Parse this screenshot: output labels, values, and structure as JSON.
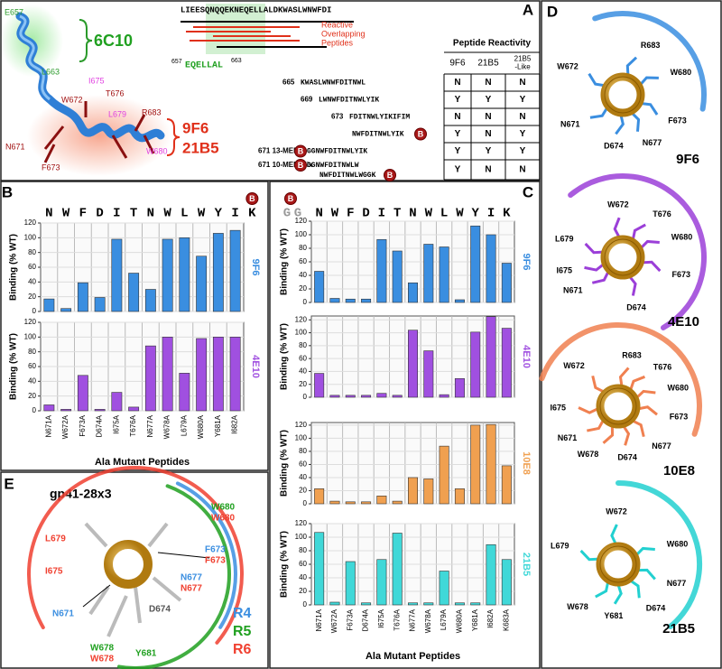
{
  "panel_letters": [
    "A",
    "B",
    "C",
    "D",
    "E"
  ],
  "biotin": "B",
  "panel_a": {
    "sequence": "LIEESQNQQEKNEQELLALDKWASLWNWFDI",
    "peptides_label": [
      "Reactive",
      "Overlapping",
      "Peptides"
    ],
    "epitope": {
      "start": "657",
      "seq": "EQELLAL",
      "end": "663"
    },
    "antibody_6c10": "6C10",
    "antibody_9f6": "9F6",
    "antibody_21b5": "21B5",
    "residues": [
      {
        "label": "E657",
        "color": "#2a9a2a"
      },
      {
        "label": "L663",
        "color": "#2a9a2a"
      },
      {
        "label": "W672",
        "color": "#a01010"
      },
      {
        "label": "T676",
        "color": "#a01010"
      },
      {
        "label": "I675",
        "color": "#e040e0"
      },
      {
        "label": "L679",
        "color": "#e040e0"
      },
      {
        "label": "R683",
        "color": "#a01010"
      },
      {
        "label": "N671",
        "color": "#a01010"
      },
      {
        "label": "F673",
        "color": "#a01010"
      },
      {
        "label": "W680",
        "color": "#e040e0"
      }
    ],
    "table": {
      "title": "Peptide Reactivity",
      "columns": [
        [
          "9F6"
        ],
        [
          "21B5"
        ],
        [
          "21B5",
          "-Like"
        ]
      ],
      "rows": [
        {
          "label": "665",
          "seq": [
            "KWASLWNWFDITNWL"
          ],
          "cells": [
            "N",
            "N",
            "N"
          ]
        },
        {
          "label": "669",
          "seq": [
            "LWNWFDITNWLYIK"
          ],
          "cells": [
            "Y",
            "Y",
            "Y"
          ]
        },
        {
          "label": "673",
          "seq": [
            "FDITNWLYIKIFIM"
          ],
          "cells": [
            "N",
            "N",
            "N"
          ]
        },
        {
          "seq": [
            "NWFDITNWLYIK"
          ],
          "cells": [
            "Y",
            "N",
            "Y"
          ]
        },
        {
          "label": "671 13-MER",
          "seq": [
            "GGNWFDITNWLYIK"
          ],
          "cells": [
            "Y",
            "Y",
            "Y"
          ]
        },
        {
          "label": "671 10-MER Mix",
          "seq": [
            "GGNWFDITNWLW",
            "NWFDITNWLWGGK"
          ],
          "cells": [
            "Y",
            "N",
            "N"
          ]
        }
      ]
    }
  },
  "panel_b_sequence": [
    "N",
    "W",
    "F",
    "D",
    "I",
    "T",
    "N",
    "W",
    "L",
    "W",
    "Y",
    "I",
    "K"
  ],
  "panel_c_sequence": [
    "G",
    "G",
    "N",
    "W",
    "F",
    "D",
    "I",
    "T",
    "N",
    "W",
    "L",
    "W",
    "Y",
    "I",
    "K"
  ],
  "chart_data": [
    {
      "type": "bar",
      "title": "9F6",
      "color": "#3a8ee0",
      "ylabel": "Binding (% WT)",
      "values": [
        17,
        4,
        39,
        19,
        98,
        52,
        30,
        98,
        100,
        75,
        106,
        110
      ],
      "ylim": [
        0,
        120
      ],
      "yticks": [
        0,
        20,
        40,
        60,
        80,
        100,
        120
      ],
      "grid": true
    },
    {
      "type": "bar",
      "title": "4E10",
      "color": "#a050e0",
      "ylabel": "Binding (% WT)",
      "xlabel": "Ala Mutant Peptides",
      "categories": [
        "N671A",
        "W672A",
        "F673A",
        "D674A",
        "I675A",
        "T676A",
        "N677A",
        "W678A",
        "L679A",
        "W680A",
        "Y681A",
        "I682A"
      ],
      "values": [
        8,
        2,
        48,
        2,
        25,
        5,
        88,
        100,
        51,
        98,
        100,
        100
      ],
      "ylim": [
        0,
        120
      ],
      "yticks": [
        0,
        20,
        40,
        60,
        80,
        100,
        120
      ],
      "grid": true
    },
    {
      "type": "bar",
      "title": "9F6",
      "color": "#3a8ee0",
      "ylabel": "Binding (% WT)",
      "values": [
        46,
        6,
        5,
        5,
        93,
        76,
        29,
        86,
        82,
        4,
        113,
        100,
        58
      ],
      "ylim": [
        0,
        120
      ],
      "yticks": [
        0,
        20,
        40,
        60,
        80,
        100,
        120
      ],
      "grid": true
    },
    {
      "type": "bar",
      "title": "4E10",
      "color": "#a050e0",
      "ylabel": "Binding (% WT)",
      "values": [
        37,
        3,
        3,
        3,
        6,
        3,
        104,
        72,
        4,
        29,
        101,
        125,
        107
      ],
      "ylim": [
        0,
        126
      ],
      "yticks": [
        0,
        20,
        40,
        60,
        80,
        100,
        120
      ],
      "grid": true
    },
    {
      "type": "bar",
      "title": "10E8",
      "color": "#f0a050",
      "ylabel": "Binding (% WT)",
      "values": [
        23,
        4,
        3,
        3,
        12,
        4,
        40,
        38,
        88,
        23,
        120,
        121,
        58
      ],
      "ylim": [
        0,
        124
      ],
      "yticks": [
        0,
        20,
        40,
        60,
        80,
        100,
        120
      ],
      "grid": true
    },
    {
      "type": "bar",
      "title": "21B5",
      "color": "#40d8d8",
      "ylabel": "Binding (% WT)",
      "xlabel": "Ala Mutant Peptides",
      "categories": [
        "N671A",
        "W672A",
        "F673A",
        "D674A",
        "I675A",
        "T676A",
        "N677A",
        "W678A",
        "L679A",
        "W680A",
        "Y681A",
        "I682A",
        "K683A"
      ],
      "values": [
        107,
        4,
        64,
        3,
        67,
        106,
        3,
        3,
        50,
        3,
        3,
        89,
        67
      ],
      "ylim": [
        0,
        120
      ],
      "yticks": [
        0,
        20,
        40,
        60,
        80,
        100,
        120
      ],
      "grid": true
    }
  ],
  "panel_d": [
    {
      "name": "9F6",
      "color": "#3a8ee0",
      "residues": [
        "R683",
        "W672",
        "W680",
        "F673",
        "N677",
        "N671",
        "D674"
      ]
    },
    {
      "name": "4E10",
      "color": "#9b3fd8",
      "residues": [
        "W672",
        "T676",
        "L679",
        "W680",
        "I675",
        "F673",
        "N671",
        "D674"
      ]
    },
    {
      "name": "10E8",
      "color": "#f08050",
      "residues": [
        "R683",
        "T676",
        "W672",
        "W680",
        "I675",
        "F673",
        "N677",
        "N671",
        "D674",
        "W678"
      ]
    },
    {
      "name": "21B5",
      "color": "#22d0d0",
      "residues": [
        "W672",
        "L679",
        "W680",
        "N677",
        "D674",
        "W678",
        "Y681"
      ]
    }
  ],
  "panel_e": {
    "title": "gp41-28x3",
    "legend": [
      {
        "label": "R4",
        "color": "#3a8ee0"
      },
      {
        "label": "R5",
        "color": "#20a020"
      },
      {
        "label": "R6",
        "color": "#f04030"
      }
    ],
    "residues": [
      {
        "label": "W680",
        "color": "#20a020"
      },
      {
        "label": "W680",
        "color": "#f04030"
      },
      {
        "label": "F673",
        "color": "#3a8ee0"
      },
      {
        "label": "F673",
        "color": "#f04030"
      },
      {
        "label": "L679",
        "color": "#f04030"
      },
      {
        "label": "I675",
        "color": "#f04030"
      },
      {
        "label": "N677",
        "color": "#3a8ee0"
      },
      {
        "label": "N677",
        "color": "#f04030"
      },
      {
        "label": "N671",
        "color": "#3a8ee0"
      },
      {
        "label": "D674",
        "color": "#555555"
      },
      {
        "label": "W678",
        "color": "#20a020"
      },
      {
        "label": "W678",
        "color": "#f04030"
      },
      {
        "label": "Y681",
        "color": "#20a020"
      }
    ]
  }
}
